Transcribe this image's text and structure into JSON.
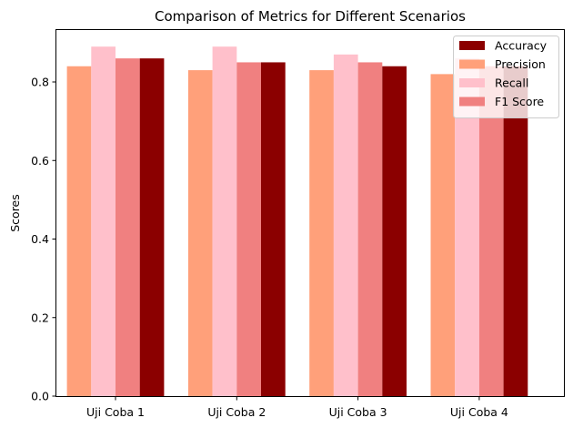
{
  "chart_data": {
    "type": "bar",
    "title": "Comparison of Metrics for Different Scenarios",
    "xlabel": "",
    "ylabel": "Scores",
    "ylim": [
      0,
      0.9345
    ],
    "yticks": [
      0.0,
      0.2,
      0.4,
      0.6,
      0.8
    ],
    "ytick_labels": [
      "0.0",
      "0.2",
      "0.4",
      "0.6",
      "0.8"
    ],
    "categories": [
      "Uji Coba 1",
      "Uji Coba 2",
      "Uji Coba 3",
      "Uji Coba 4"
    ],
    "legend_position": "top-right",
    "grid": false,
    "series": [
      {
        "name": "Accuracy",
        "color": "#8b0000",
        "values": [
          0.86,
          0.85,
          0.84,
          0.84
        ]
      },
      {
        "name": "Precision",
        "color": "#ffa07a",
        "values": [
          0.84,
          0.83,
          0.83,
          0.82
        ]
      },
      {
        "name": "Recall",
        "color": "#ffc0cb",
        "values": [
          0.89,
          0.89,
          0.87,
          0.86
        ]
      },
      {
        "name": "F1 Score",
        "color": "#f08080",
        "values": [
          0.86,
          0.85,
          0.85,
          0.84
        ]
      }
    ],
    "draw_order": [
      "Precision",
      "Recall",
      "F1 Score",
      "Accuracy"
    ]
  }
}
